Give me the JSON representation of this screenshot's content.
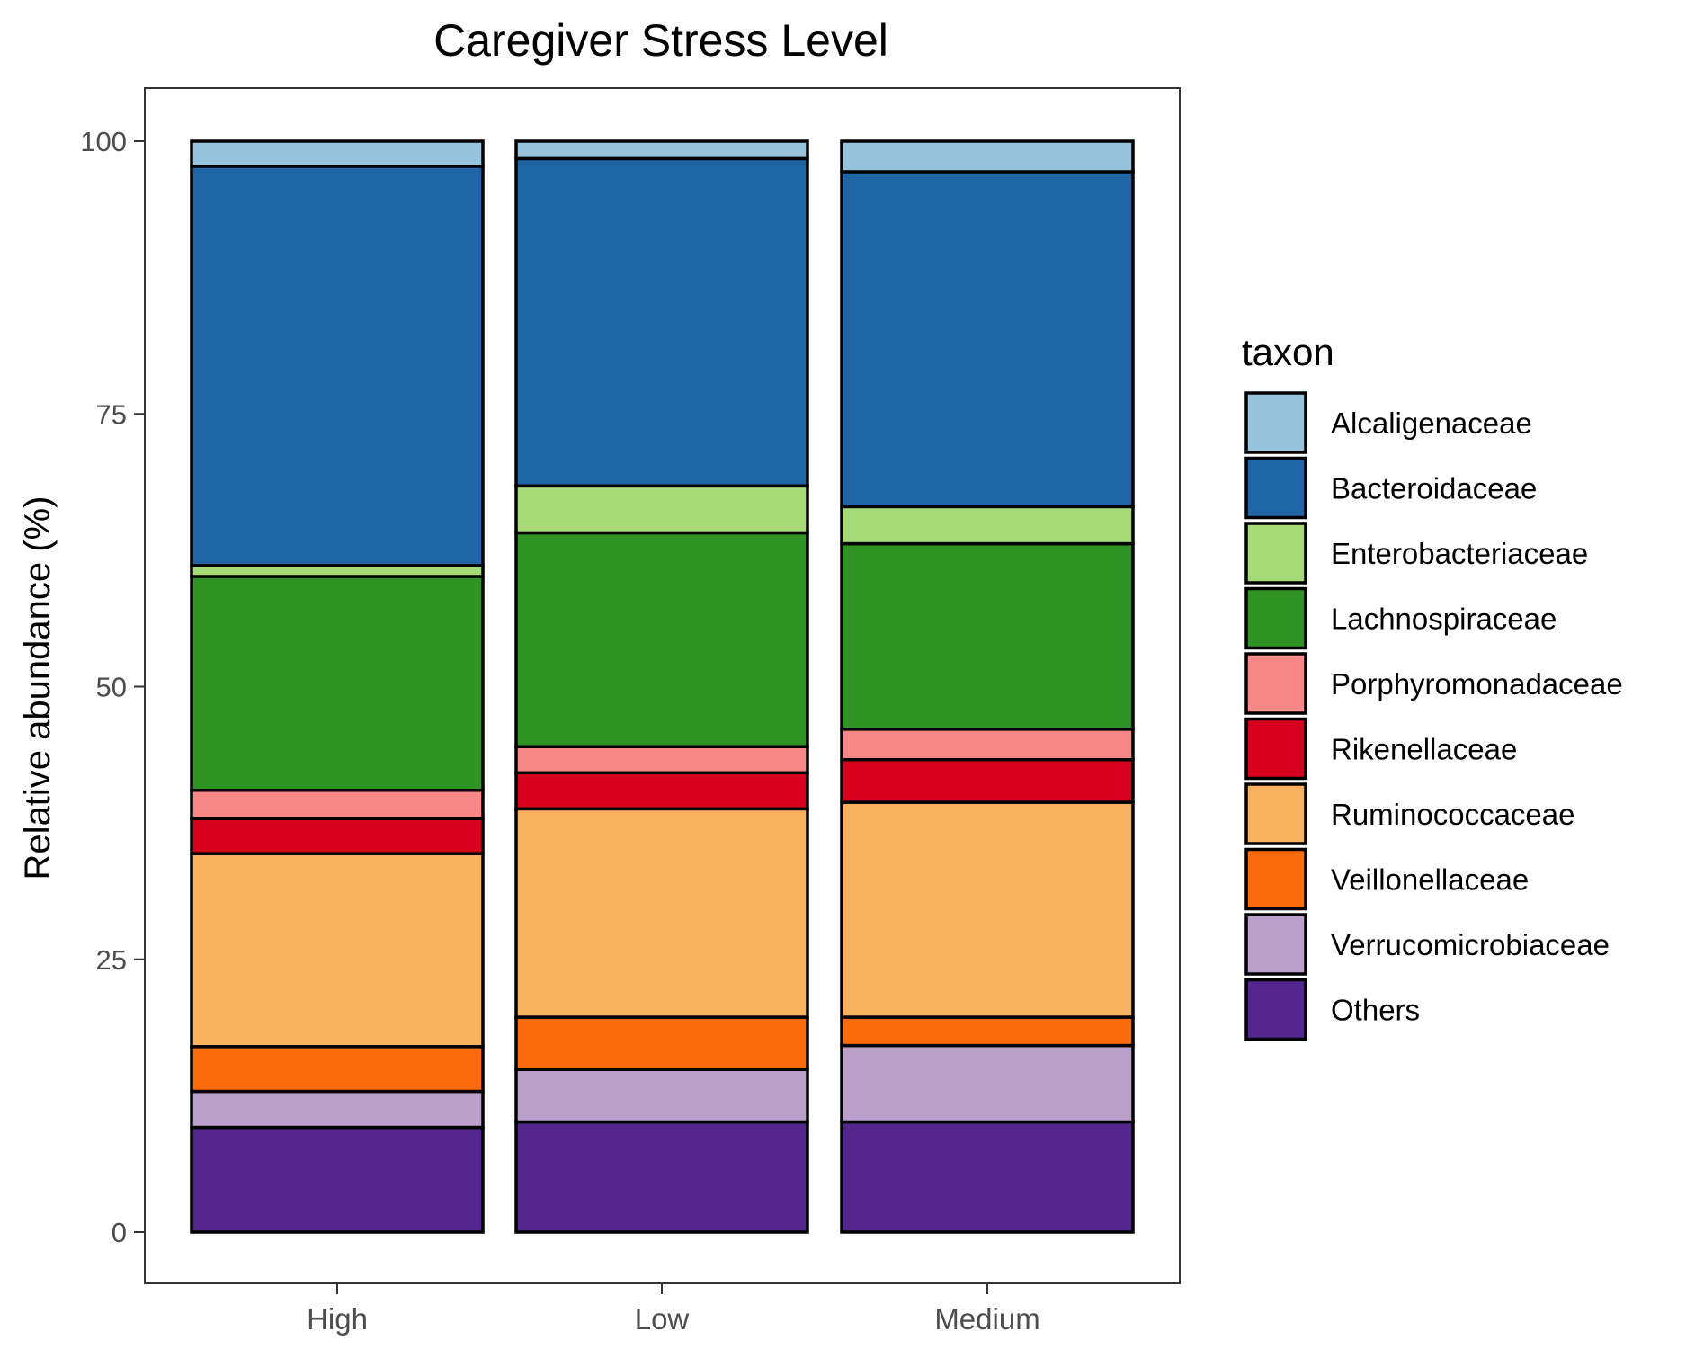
{
  "chart_data": {
    "type": "bar",
    "stacked": true,
    "title": "Caregiver Stress Level",
    "xlabel": "",
    "ylabel": "Relative abundance (%)",
    "ylim": [
      -5,
      105
    ],
    "yticks": [
      0,
      25,
      50,
      75,
      100
    ],
    "categories": [
      "High",
      "Low",
      "Medium"
    ],
    "legend": {
      "title": "taxon",
      "position": "right"
    },
    "grid": false,
    "series": [
      {
        "name": "Others",
        "color": "#54278F",
        "values": [
          9.6,
          10.1,
          10.1
        ]
      },
      {
        "name": "Verrucomicrobiaceae",
        "color": "#BCA0CC",
        "values": [
          3.3,
          4.8,
          7.0
        ]
      },
      {
        "name": "Veillonellaceae",
        "color": "#FB6A0B",
        "values": [
          4.1,
          4.8,
          2.6
        ]
      },
      {
        "name": "Ruminococcaceae",
        "color": "#F9B05F",
        "values": [
          17.7,
          19.1,
          19.7
        ]
      },
      {
        "name": "Rikenellaceae",
        "color": "#D7001E",
        "values": [
          3.2,
          3.3,
          3.9
        ]
      },
      {
        "name": "Porphyromonadaceae",
        "color": "#F78686",
        "values": [
          2.6,
          2.4,
          2.8
        ]
      },
      {
        "name": "Lachnospiraceae",
        "color": "#2E9322",
        "values": [
          19.6,
          19.6,
          17.0
        ]
      },
      {
        "name": "Enterobacteriaceae",
        "color": "#A6DA77",
        "values": [
          1.0,
          4.3,
          3.4
        ]
      },
      {
        "name": "Bacteroidaceae",
        "color": "#1F64A5",
        "values": [
          36.6,
          30.0,
          30.7
        ]
      },
      {
        "name": "Alcaligenaceae",
        "color": "#97C3DD",
        "values": [
          2.3,
          1.6,
          2.8
        ]
      }
    ],
    "legend_order": [
      "Alcaligenaceae",
      "Bacteroidaceae",
      "Enterobacteriaceae",
      "Lachnospiraceae",
      "Porphyromonadaceae",
      "Rikenellaceae",
      "Ruminococcaceae",
      "Veillonellaceae",
      "Verrucomicrobiaceae",
      "Others"
    ]
  }
}
